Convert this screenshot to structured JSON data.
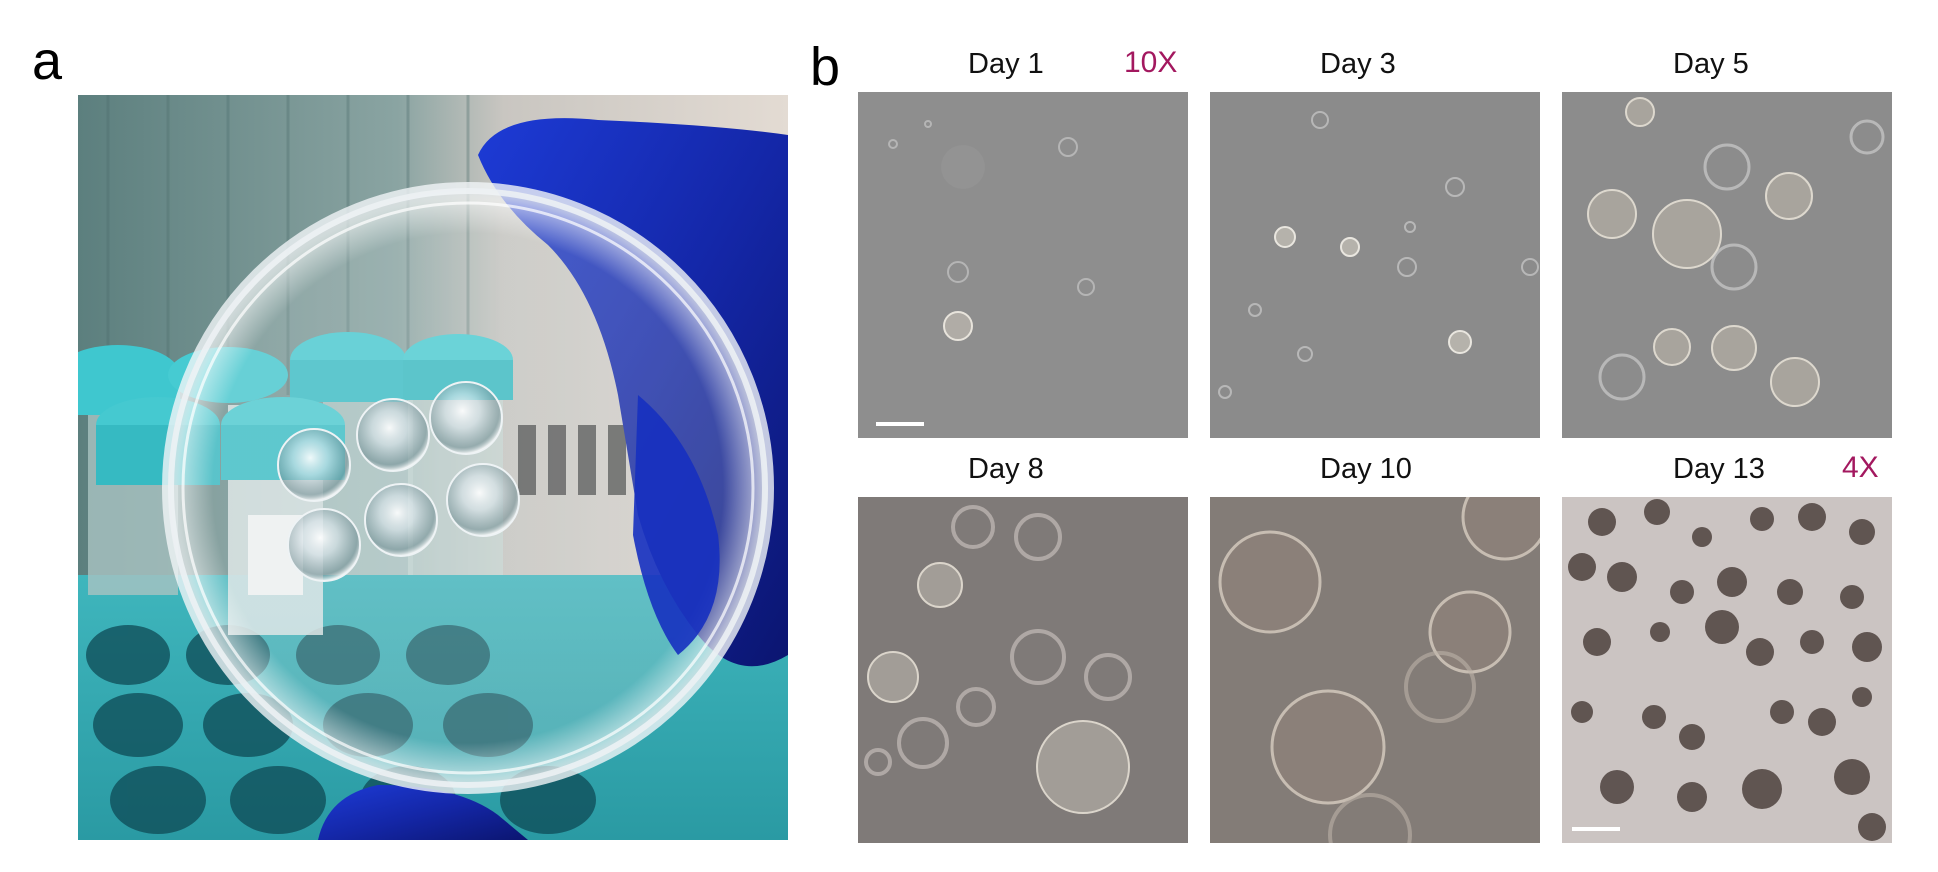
{
  "panel_a": {
    "letter": "a"
  },
  "panel_b": {
    "letter": "b",
    "magnification_color": "#a3185f",
    "tiles": [
      {
        "day": "Day 1",
        "magnification": "10X",
        "scale_bar": true
      },
      {
        "day": "Day 3"
      },
      {
        "day": "Day 5"
      },
      {
        "day": "Day 8"
      },
      {
        "day": "Day 10"
      },
      {
        "day": "Day 13",
        "magnification": "4X",
        "scale_bar": true
      }
    ]
  }
}
